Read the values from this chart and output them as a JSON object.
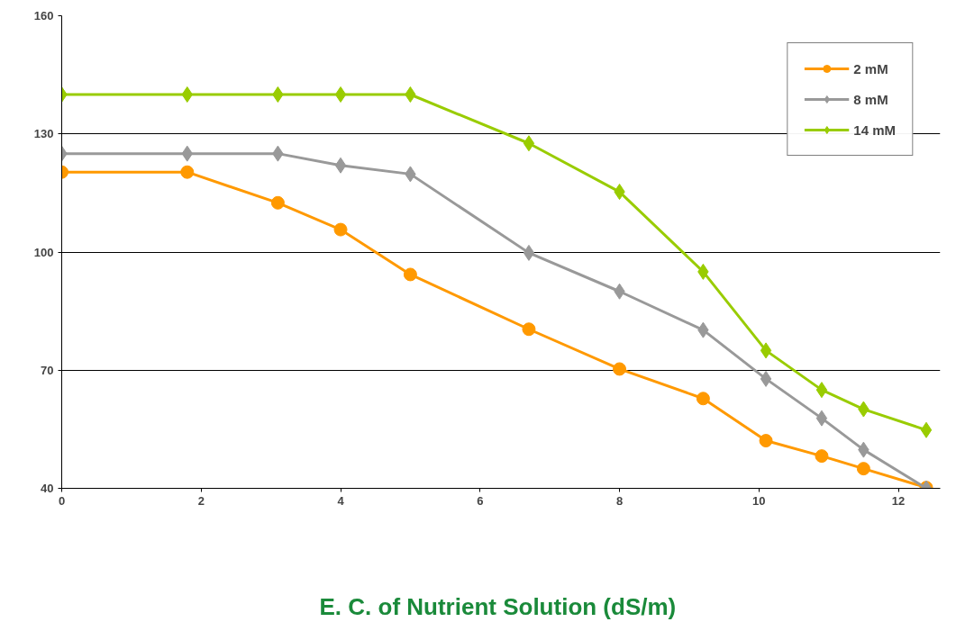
{
  "chart_data": {
    "type": "line",
    "xlabel": "E. C. of  Nutrient Solution (dS/m)",
    "xlim": [
      0,
      12.6
    ],
    "xticks": [
      0,
      2,
      4,
      6,
      8,
      10,
      12
    ],
    "ylim": [
      40,
      160
    ],
    "yticks": [
      40,
      70,
      100,
      130,
      160
    ],
    "grid": "y",
    "legend": "top right",
    "line_style": "solid",
    "series": [
      {
        "name": "2 mM",
        "color": "#ff9900",
        "marker": "circle",
        "x": [
          0,
          1.8,
          3.1,
          4,
          5,
          6.7,
          8,
          9.2,
          10.1,
          10.9,
          11.5,
          12.4
        ],
        "values": [
          120.3,
          120.3,
          112.5,
          105.7,
          94.3,
          80.4,
          70.3,
          62.8,
          52.1,
          48.2,
          45,
          40.2
        ]
      },
      {
        "name": "8 mM",
        "color": "#999999",
        "marker": "diamond",
        "x": [
          0,
          1.8,
          3.1,
          4,
          5,
          6.7,
          8,
          9.2,
          10.1,
          10.9,
          11.5,
          12.4
        ],
        "values": [
          125,
          125,
          125,
          122,
          119.8,
          99.8,
          90,
          80.2,
          67.8,
          57.8,
          49.8,
          40
        ]
      },
      {
        "name": "14 mM",
        "color": "#99cc00",
        "marker": "diamond",
        "x": [
          0,
          1.8,
          3.1,
          4,
          5,
          6.7,
          8,
          9.2,
          10.1,
          10.9,
          11.5,
          12.4
        ],
        "values": [
          140,
          140,
          140,
          140,
          140,
          127.6,
          115.3,
          95,
          75,
          65,
          60.1,
          54.8
        ]
      }
    ]
  }
}
